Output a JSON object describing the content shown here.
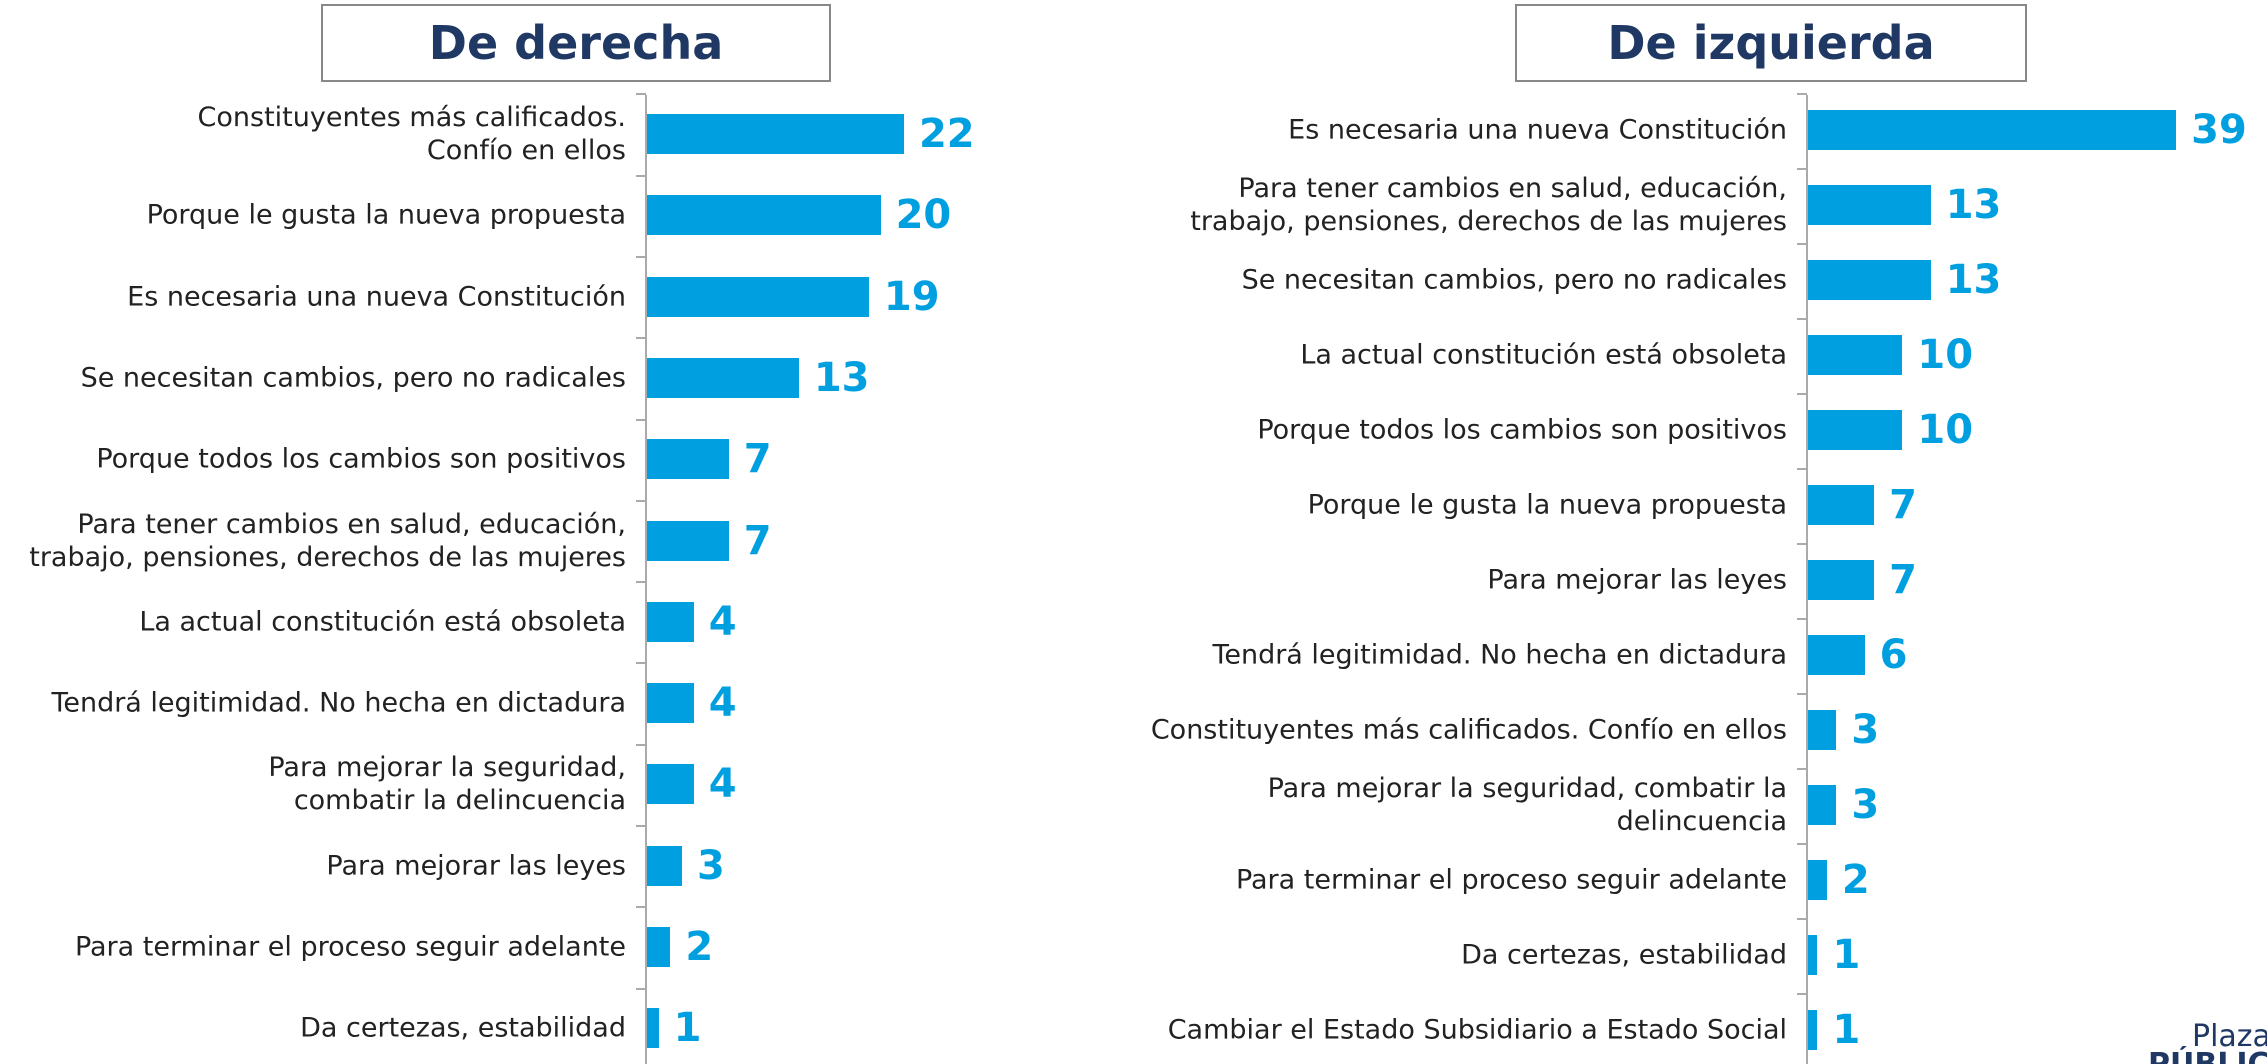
{
  "chart_data": [
    {
      "type": "bar",
      "orientation": "horizontal",
      "title": "De derecha",
      "color": "#009fe0",
      "xlim": [
        0,
        25
      ],
      "categories": [
        "Constituyentes más calificados.\nConfío en ellos",
        "Porque le gusta la nueva propuesta",
        "Es necesaria una nueva Constitución",
        "Se necesitan cambios, pero no radicales",
        "Porque todos los cambios son positivos",
        "Para tener cambios en salud, educación,\ntrabajo, pensiones, derechos de las mujeres",
        "La actual constitución está obsoleta",
        "Tendrá legitimidad. No hecha en dictadura",
        "Para mejorar la seguridad,\ncombatir la delincuencia",
        "Para mejorar las leyes",
        "Para terminar el proceso seguir adelante",
        "Da certezas, estabilidad"
      ],
      "values": [
        22,
        20,
        19,
        13,
        7,
        7,
        4,
        4,
        4,
        3,
        2,
        1
      ]
    },
    {
      "type": "bar",
      "orientation": "horizontal",
      "title": "De izquierda",
      "color": "#009fe0",
      "xlim": [
        0,
        50
      ],
      "categories": [
        "Es necesaria una nueva Constitución",
        "Para tener cambios en salud, educación,\ntrabajo, pensiones, derechos de las mujeres",
        "Se necesitan cambios, pero no radicales",
        "La actual constitución está obsoleta",
        "Porque todos los cambios son positivos",
        "Porque le gusta la nueva propuesta",
        "Para mejorar las leyes",
        "Tendrá legitimidad. No hecha en dictadura",
        "Constituyentes más calificados. Confío en ellos",
        "Para mejorar la seguridad, combatir la\ndelincuencia",
        "Para terminar el proceso seguir adelante",
        "Da certezas, estabilidad",
        "Cambiar el Estado Subsidiario a Estado Social"
      ],
      "values": [
        39,
        13,
        13,
        10,
        10,
        7,
        7,
        6,
        3,
        3,
        2,
        1,
        1
      ]
    }
  ],
  "logo": {
    "line1": "Plaza",
    "line2": "PÚBLICA"
  }
}
